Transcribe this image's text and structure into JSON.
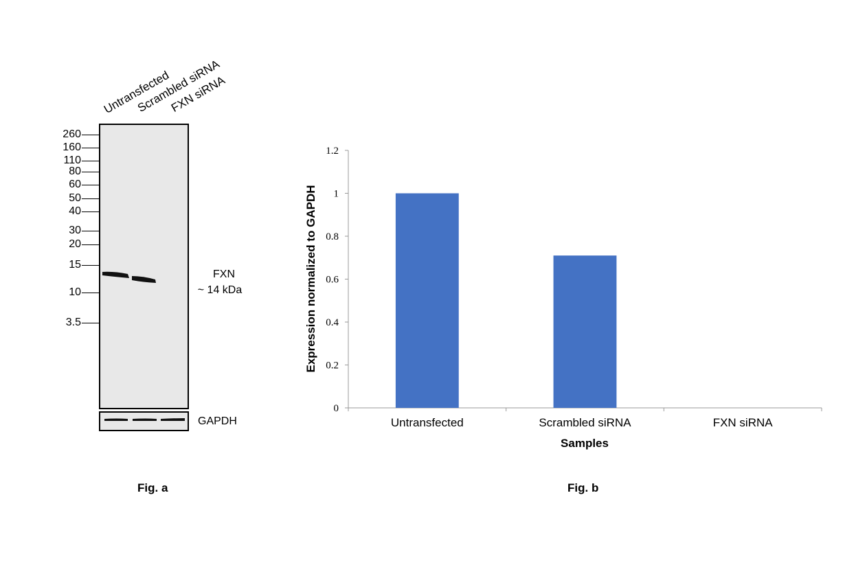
{
  "western_blot": {
    "lanes": [
      "Untransfected",
      "Scrambled siRNA",
      "FXN siRNA"
    ],
    "mw_markers": [
      "260",
      "160",
      "110",
      "80",
      "60",
      "50",
      "40",
      "30",
      "20",
      "15",
      "10",
      "3.5"
    ],
    "target_label": "FXN",
    "target_size": "~ 14 kDa",
    "loading_control": "GAPDH",
    "fig_label": "Fig. a"
  },
  "chart_data": {
    "type": "bar",
    "categories": [
      "Untransfected",
      "Scrambled siRNA",
      "FXN siRNA"
    ],
    "values": [
      1.0,
      0.71,
      0.0
    ],
    "title": "",
    "xlabel": "Samples",
    "ylabel": "Expression normalized to GAPDH",
    "ylim": [
      0,
      1.2
    ],
    "yticks": [
      "0",
      "0.2",
      "0.4",
      "0.6",
      "0.8",
      "1",
      "1.2"
    ],
    "bar_color": "#4472c4",
    "grid": false,
    "fig_label": "Fig. b"
  }
}
